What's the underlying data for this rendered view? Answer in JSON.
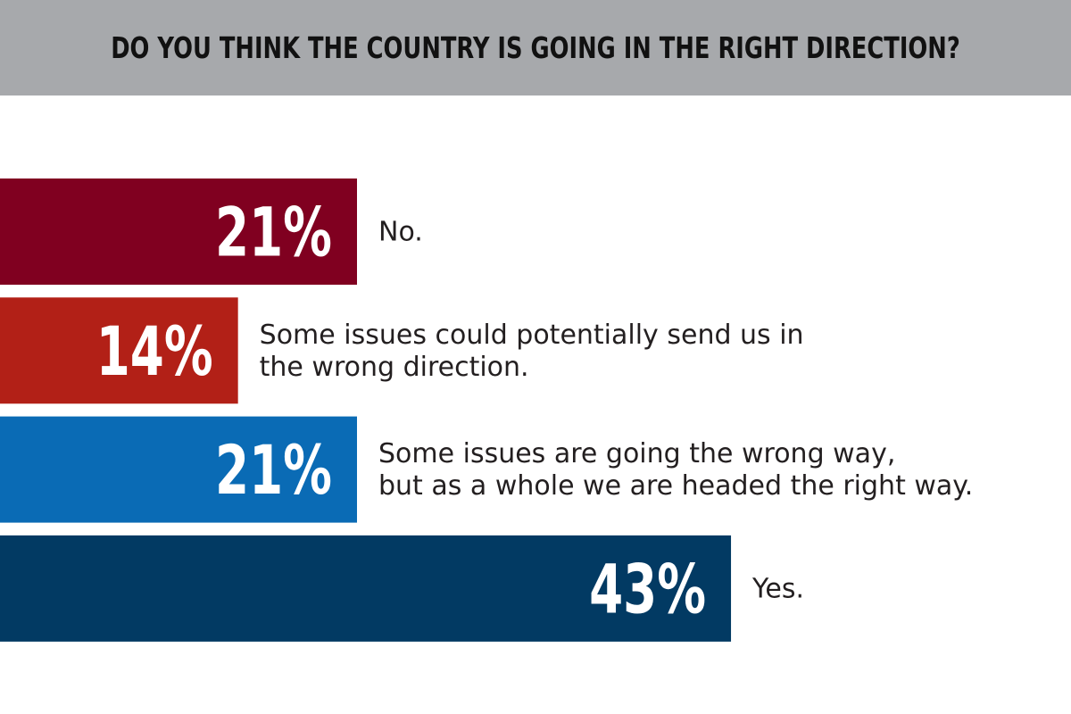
{
  "chart_data": {
    "type": "bar",
    "orientation": "horizontal",
    "title": "DO YOU THINK THE COUNTRY IS GOING IN THE RIGHT DIRECTION?",
    "categories": [
      "No.",
      "Some issues could potentially send us in the wrong direction.",
      "Some issues are going the wrong way, but as a whole we are headed the right way.",
      "Yes."
    ],
    "category_lines": [
      [
        "No."
      ],
      [
        "Some issues could potentially send us in",
        "the wrong direction."
      ],
      [
        "Some issues are going the wrong way,",
        "but as a whole we are headed the right way."
      ],
      [
        "Yes."
      ]
    ],
    "values": [
      21,
      14,
      21,
      43
    ],
    "value_labels": [
      "21%",
      "14%",
      "21%",
      "43%"
    ],
    "colors": [
      "#800020",
      "#b22017",
      "#0a6bb5",
      "#023a63"
    ],
    "xlim": [
      0,
      63
    ],
    "grid": false,
    "legend": "none"
  }
}
